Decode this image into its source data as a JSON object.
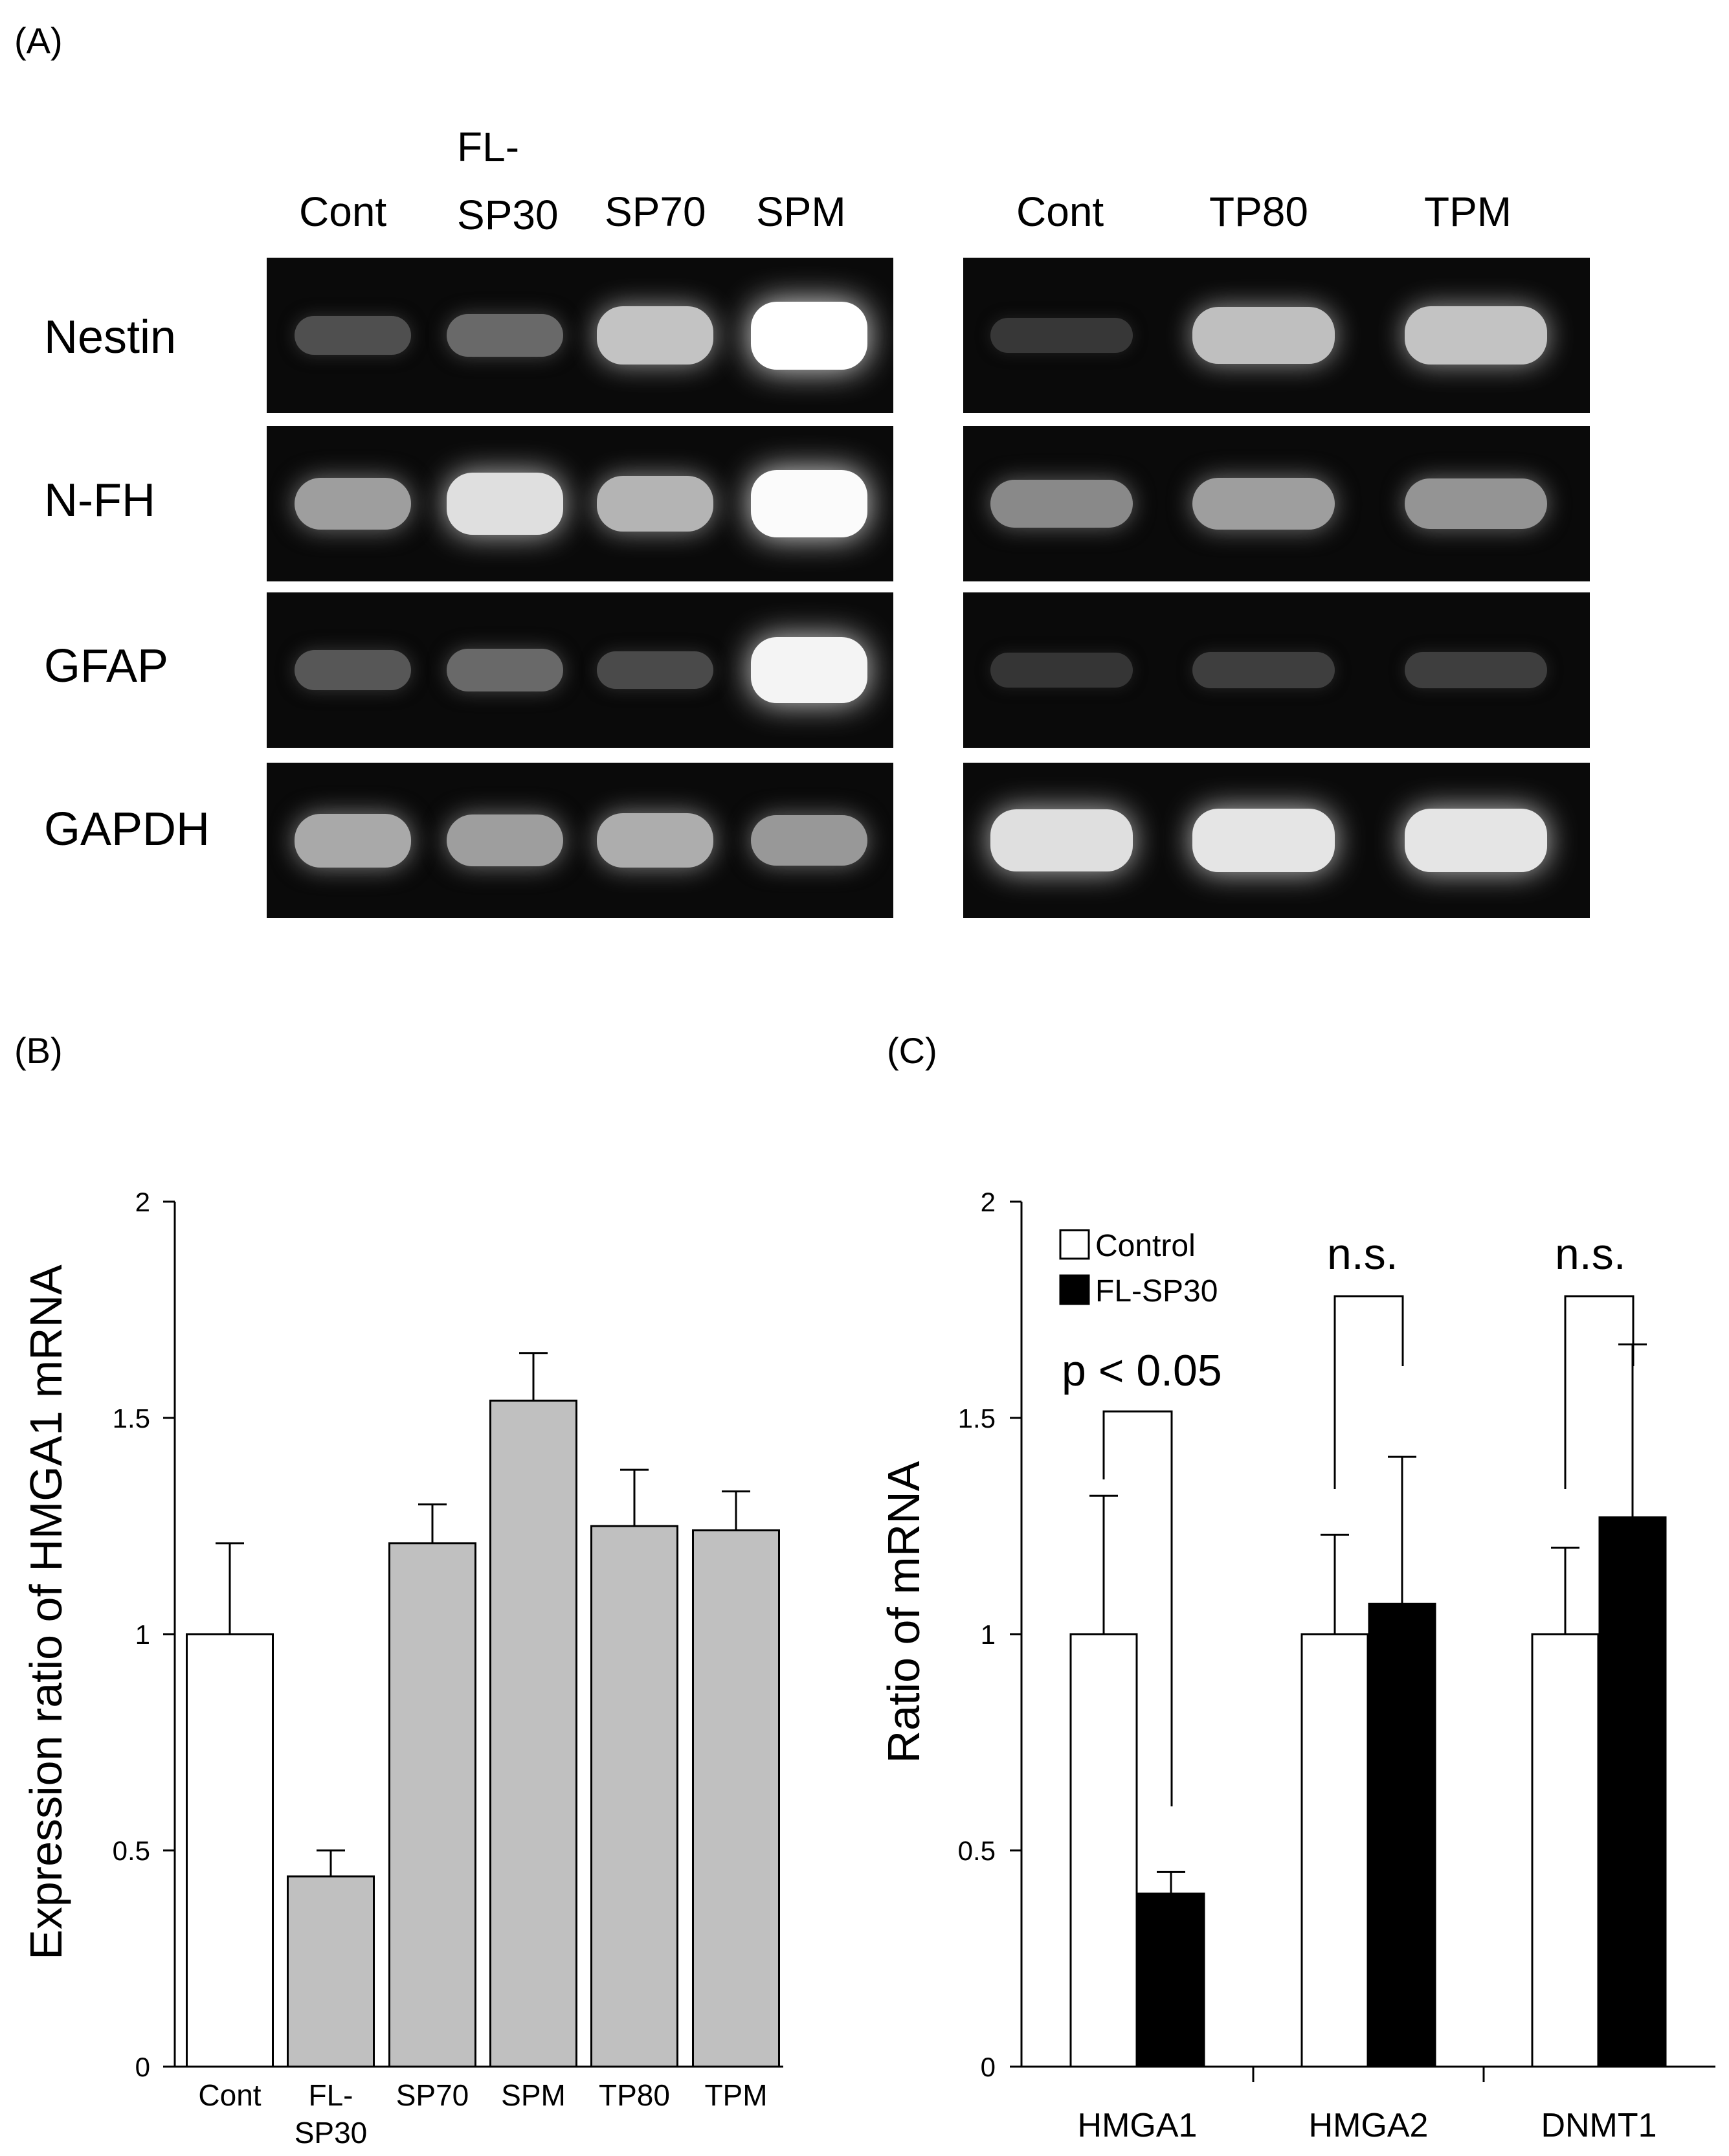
{
  "panels": {
    "a": "(A)",
    "b": "(B)",
    "c": "(C)"
  },
  "gel": {
    "left_lanes": [
      "Cont",
      "FL-",
      "SP30",
      "SP70",
      "SPM"
    ],
    "right_lanes": [
      "Cont",
      "TP80",
      "TPM"
    ],
    "rows": [
      "Nestin",
      "N-FH",
      "GFAP",
      "GAPDH"
    ],
    "intensity": {
      "left": [
        [
          0.18,
          0.3,
          0.72,
          1.0
        ],
        [
          0.55,
          0.85,
          0.65,
          0.98
        ],
        [
          0.22,
          0.3,
          0.16,
          0.95
        ],
        [
          0.6,
          0.55,
          0.62,
          0.52
        ]
      ],
      "right": [
        [
          0.07,
          0.7,
          0.72
        ],
        [
          0.45,
          0.55,
          0.5
        ],
        [
          0.06,
          0.1,
          0.1
        ],
        [
          0.85,
          0.88,
          0.88
        ]
      ]
    }
  },
  "chart_data": [
    {
      "type": "bar",
      "categories": [
        "Cont",
        "FL-SP30",
        "SP70",
        "SPM",
        "TP80",
        "TPM"
      ],
      "category_labels": [
        [
          "Cont"
        ],
        [
          "FL-",
          "SP30"
        ],
        [
          "SP70"
        ],
        [
          "SPM"
        ],
        [
          "TP80"
        ],
        [
          "TPM"
        ]
      ],
      "values": [
        1.0,
        0.44,
        1.21,
        1.54,
        1.25,
        1.24
      ],
      "errors": [
        0.21,
        0.06,
        0.09,
        0.11,
        0.13,
        0.09
      ],
      "colors": [
        "#ffffff",
        "#c0c0c0",
        "#c0c0c0",
        "#c0c0c0",
        "#c0c0c0",
        "#c0c0c0"
      ],
      "ylabel": "Expression ratio of HMGA1 mRNA",
      "ylim": [
        0,
        2
      ],
      "yticks": [
        "0",
        "0.5",
        "1",
        "1.5",
        "2"
      ]
    },
    {
      "type": "bar",
      "categories": [
        "HMGA1",
        "HMGA2",
        "DNMT1"
      ],
      "series": [
        {
          "name": "Control",
          "values": [
            1.0,
            1.0,
            1.0
          ],
          "errors": [
            0.32,
            0.23,
            0.2
          ],
          "color": "#ffffff"
        },
        {
          "name": "FL-SP30",
          "values": [
            0.4,
            1.07,
            1.27
          ],
          "errors": [
            0.05,
            0.34,
            0.4
          ],
          "color": "#000000"
        }
      ],
      "annotations": [
        "p < 0.05",
        "n.s.",
        "n.s."
      ],
      "ylabel": "Ratio of  mRNA",
      "ylim": [
        0,
        2
      ],
      "yticks": [
        "0",
        "0.5",
        "1",
        "1.5",
        "2"
      ],
      "legend": "top-left"
    }
  ]
}
